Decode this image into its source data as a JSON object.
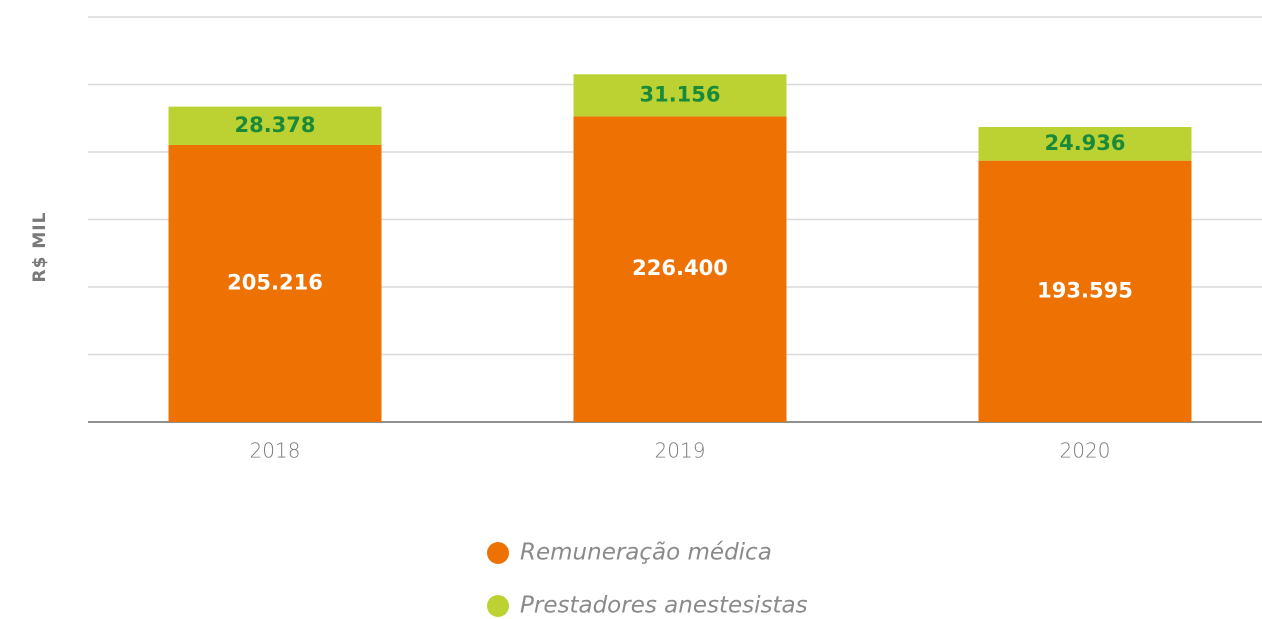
{
  "chart_data": {
    "type": "stacked_bar",
    "y_label": "R$ MIL",
    "categories": [
      "2018",
      "2019",
      "2020"
    ],
    "series": [
      {
        "name": "Remuneração médica",
        "color": "#ee7203",
        "label_color": "#ffffff",
        "values": [
          205216,
          226400,
          193595
        ],
        "value_labels": [
          "205.216",
          "226.400",
          "193.595"
        ]
      },
      {
        "name": "Prestadores anestesistas",
        "color": "#bcd232",
        "label_color": "#1a8a3a",
        "values": [
          28378,
          31156,
          24936
        ],
        "value_labels": [
          "28.378",
          "31.156",
          "24.936"
        ]
      }
    ],
    "ylim": [
      0,
      300000
    ],
    "yticks": [
      0,
      50000,
      100000,
      150000,
      200000,
      250000,
      300000
    ],
    "grid": true
  }
}
